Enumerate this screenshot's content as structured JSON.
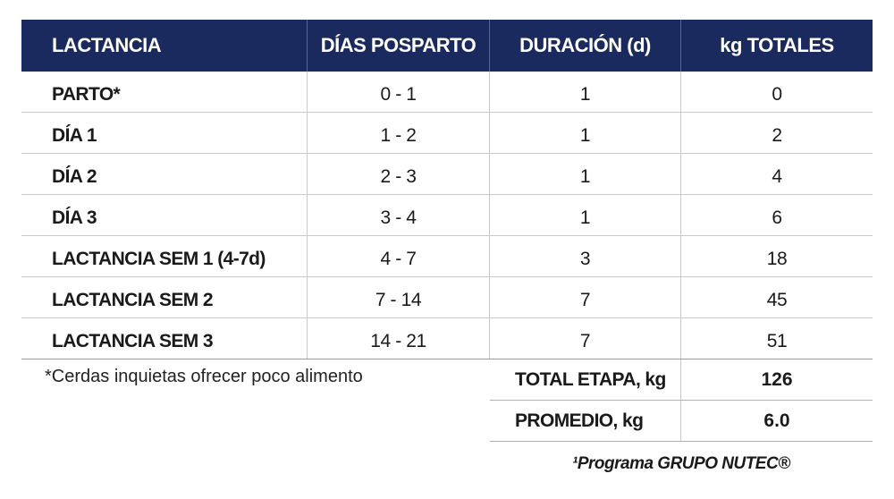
{
  "table": {
    "headers": [
      "LACTANCIA",
      "DÍAS POSPARTO",
      "DURACIÓN (d)",
      "kg TOTALES"
    ],
    "rows": [
      [
        "PARTO*",
        "0 - 1",
        "1",
        "0"
      ],
      [
        "DÍA 1",
        "1 - 2",
        "1",
        "2"
      ],
      [
        "DÍA 2",
        "2 - 3",
        "1",
        "4"
      ],
      [
        "DÍA 3",
        "3 - 4",
        "1",
        "6"
      ],
      [
        "LACTANCIA SEM 1 (4-7d)",
        "4 - 7",
        "3",
        "18"
      ],
      [
        "LACTANCIA SEM 2",
        "7 - 14",
        "7",
        "45"
      ],
      [
        "LACTANCIA SEM 3",
        "14 - 21",
        "7",
        "51"
      ]
    ]
  },
  "footnote": "*Cerdas inquietas ofrecer poco alimento",
  "summary": [
    {
      "label": "TOTAL ETAPA, kg",
      "value": "126"
    },
    {
      "label": "PROMEDIO, kg",
      "value": "6.0"
    }
  ],
  "source": "¹Programa GRUPO NUTEC®",
  "colors": {
    "header_bg": "#1b2a5e",
    "header_text": "#ffffff"
  }
}
